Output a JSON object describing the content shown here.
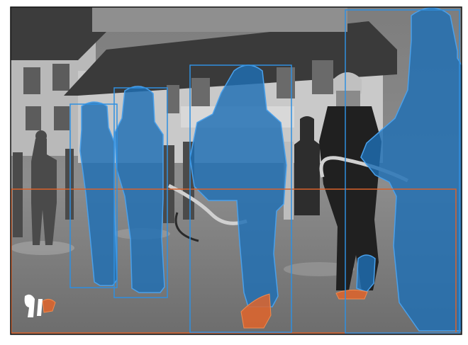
{
  "image": {
    "kind": "annotated-photo",
    "tone": "black-and-white",
    "overlay": "segmentation-masks-and-boxes"
  },
  "colors": {
    "frame": "#111111",
    "person_mask": "#1f6fb4",
    "person_box": "#2f8fe0",
    "object_mask": "#e0642a",
    "object_box": "#d9622b"
  },
  "annotations": [
    {
      "category": "person",
      "color": "#2f8fe0"
    },
    {
      "category": "person",
      "color": "#2f8fe0"
    },
    {
      "category": "person",
      "color": "#2f8fe0"
    },
    {
      "category": "person",
      "color": "#2f8fe0"
    },
    {
      "category": "object",
      "color": "#d9622b"
    }
  ]
}
